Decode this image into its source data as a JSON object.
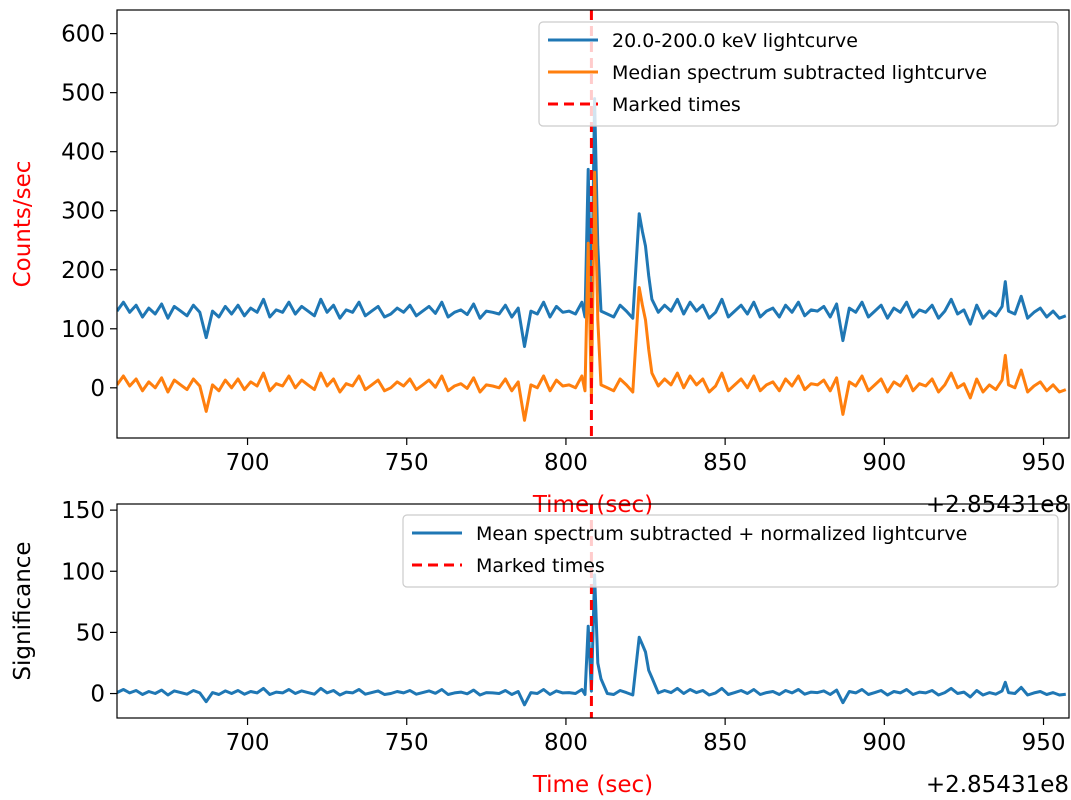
{
  "chart_data": [
    {
      "type": "line",
      "ylabel": "Counts/sec",
      "xlabel": "Time (sec)",
      "x_offset_label": "+2.85431e8",
      "x_ticks": [
        700,
        750,
        800,
        850,
        900,
        950
      ],
      "y_ticks": [
        0,
        100,
        200,
        300,
        400,
        500,
        600
      ],
      "xlim": [
        659,
        958
      ],
      "ylim": [
        -85,
        640
      ],
      "legend_position": "top-right",
      "marked_time": 808,
      "legend": [
        "20.0-200.0 keV lightcurve",
        "Median spectrum subtracted lightcurve",
        "Marked times"
      ],
      "series": [
        {
          "name": "20.0-200.0 keV lightcurve",
          "color": "#1f77b4",
          "x": [
            659,
            661,
            663,
            665,
            667,
            669,
            671,
            673,
            675,
            677,
            679,
            681,
            683,
            685,
            687,
            689,
            691,
            693,
            695,
            697,
            699,
            701,
            703,
            705,
            707,
            709,
            711,
            713,
            715,
            717,
            719,
            721,
            723,
            725,
            727,
            729,
            731,
            733,
            735,
            737,
            739,
            741,
            743,
            745,
            747,
            749,
            751,
            753,
            755,
            757,
            759,
            761,
            763,
            765,
            767,
            769,
            771,
            773,
            775,
            777,
            779,
            781,
            783,
            785,
            787,
            789,
            791,
            793,
            795,
            797,
            799,
            801,
            803,
            805,
            806,
            807,
            808,
            809,
            810,
            811,
            813,
            815,
            817,
            819,
            821,
            823,
            824,
            825,
            826,
            827,
            829,
            831,
            833,
            835,
            837,
            839,
            841,
            843,
            845,
            847,
            849,
            851,
            853,
            855,
            857,
            859,
            861,
            863,
            865,
            867,
            869,
            871,
            873,
            875,
            877,
            879,
            881,
            883,
            885,
            887,
            889,
            891,
            893,
            895,
            897,
            899,
            901,
            903,
            905,
            907,
            909,
            911,
            913,
            915,
            917,
            919,
            921,
            923,
            925,
            927,
            929,
            931,
            933,
            935,
            937,
            938,
            939,
            941,
            943,
            945,
            947,
            949,
            951,
            953,
            955,
            957
          ],
          "values": [
            130,
            145,
            128,
            140,
            120,
            135,
            125,
            142,
            118,
            138,
            130,
            122,
            140,
            128,
            85,
            130,
            120,
            138,
            125,
            140,
            122,
            135,
            128,
            150,
            120,
            132,
            128,
            145,
            125,
            138,
            130,
            122,
            150,
            128,
            140,
            118,
            132,
            128,
            145,
            122,
            130,
            138,
            120,
            125,
            135,
            128,
            140,
            122,
            130,
            138,
            126,
            145,
            120,
            128,
            132,
            124,
            142,
            118,
            130,
            128,
            125,
            140,
            120,
            135,
            70,
            130,
            125,
            145,
            120,
            138,
            128,
            130,
            125,
            145,
            120,
            370,
            110,
            490,
            240,
            130,
            125,
            120,
            140,
            130,
            118,
            295,
            265,
            240,
            190,
            150,
            128,
            140,
            130,
            150,
            125,
            145,
            130,
            140,
            118,
            128,
            150,
            120,
            130,
            140,
            125,
            145,
            120,
            130,
            135,
            120,
            140,
            128,
            145,
            122,
            132,
            130,
            138,
            120,
            142,
            80,
            135,
            128,
            145,
            120,
            130,
            140,
            118,
            135,
            128,
            145,
            120,
            132,
            128,
            140,
            118,
            130,
            150,
            125,
            132,
            108,
            140,
            118,
            130,
            122,
            138,
            180,
            130,
            125,
            155,
            118,
            128,
            135,
            120,
            130,
            118,
            122
          ]
        },
        {
          "name": "Median spectrum subtracted lightcurve",
          "color": "#ff7f0e",
          "x": [
            659,
            661,
            663,
            665,
            667,
            669,
            671,
            673,
            675,
            677,
            679,
            681,
            683,
            685,
            687,
            689,
            691,
            693,
            695,
            697,
            699,
            701,
            703,
            705,
            707,
            709,
            711,
            713,
            715,
            717,
            719,
            721,
            723,
            725,
            727,
            729,
            731,
            733,
            735,
            737,
            739,
            741,
            743,
            745,
            747,
            749,
            751,
            753,
            755,
            757,
            759,
            761,
            763,
            765,
            767,
            769,
            771,
            773,
            775,
            777,
            779,
            781,
            783,
            785,
            787,
            789,
            791,
            793,
            795,
            797,
            799,
            801,
            803,
            805,
            806,
            807,
            808,
            809,
            810,
            811,
            813,
            815,
            817,
            819,
            821,
            823,
            824,
            825,
            826,
            827,
            829,
            831,
            833,
            835,
            837,
            839,
            841,
            843,
            845,
            847,
            849,
            851,
            853,
            855,
            857,
            859,
            861,
            863,
            865,
            867,
            869,
            871,
            873,
            875,
            877,
            879,
            881,
            883,
            885,
            887,
            889,
            891,
            893,
            895,
            897,
            899,
            901,
            903,
            905,
            907,
            909,
            911,
            913,
            915,
            917,
            919,
            921,
            923,
            925,
            927,
            929,
            931,
            933,
            935,
            937,
            938,
            939,
            941,
            943,
            945,
            947,
            949,
            951,
            953,
            955,
            957
          ],
          "values": [
            5,
            20,
            3,
            15,
            -5,
            10,
            0,
            17,
            -7,
            13,
            5,
            -3,
            15,
            3,
            -40,
            5,
            -5,
            13,
            0,
            15,
            -3,
            10,
            3,
            25,
            -5,
            7,
            3,
            20,
            0,
            13,
            5,
            -3,
            25,
            3,
            15,
            -7,
            7,
            3,
            20,
            -3,
            5,
            13,
            -5,
            0,
            10,
            3,
            15,
            -3,
            5,
            13,
            1,
            20,
            -5,
            3,
            7,
            -1,
            17,
            -7,
            5,
            3,
            0,
            15,
            -5,
            10,
            -55,
            5,
            0,
            20,
            -5,
            13,
            3,
            5,
            0,
            20,
            -5,
            245,
            -15,
            365,
            115,
            5,
            0,
            -5,
            15,
            5,
            -7,
            170,
            140,
            115,
            65,
            25,
            3,
            15,
            5,
            25,
            0,
            20,
            5,
            15,
            -7,
            3,
            25,
            -5,
            5,
            15,
            0,
            20,
            -5,
            5,
            10,
            -5,
            15,
            3,
            20,
            -3,
            7,
            5,
            13,
            -5,
            17,
            -45,
            10,
            3,
            20,
            -5,
            5,
            15,
            -7,
            10,
            3,
            20,
            -5,
            7,
            3,
            15,
            -7,
            5,
            25,
            0,
            7,
            -17,
            15,
            -7,
            5,
            -3,
            13,
            55,
            5,
            0,
            30,
            -7,
            3,
            10,
            -5,
            5,
            -7,
            -3
          ]
        }
      ]
    },
    {
      "type": "line",
      "ylabel": "Significance",
      "xlabel": "Time (sec)",
      "x_offset_label": "+2.85431e8",
      "x_ticks": [
        700,
        750,
        800,
        850,
        900,
        950
      ],
      "y_ticks": [
        0,
        50,
        100,
        150
      ],
      "xlim": [
        659,
        958
      ],
      "ylim": [
        -20,
        155
      ],
      "legend_position": "top-right",
      "marked_time": 808,
      "legend": [
        "Mean spectrum subtracted + normalized lightcurve",
        "Marked times"
      ],
      "series": [
        {
          "name": "Mean spectrum subtracted + normalized lightcurve",
          "color": "#1f77b4",
          "x": [
            659,
            661,
            663,
            665,
            667,
            669,
            671,
            673,
            675,
            677,
            679,
            681,
            683,
            685,
            687,
            689,
            691,
            693,
            695,
            697,
            699,
            701,
            703,
            705,
            707,
            709,
            711,
            713,
            715,
            717,
            719,
            721,
            723,
            725,
            727,
            729,
            731,
            733,
            735,
            737,
            739,
            741,
            743,
            745,
            747,
            749,
            751,
            753,
            755,
            757,
            759,
            761,
            763,
            765,
            767,
            769,
            771,
            773,
            775,
            777,
            779,
            781,
            783,
            785,
            787,
            789,
            791,
            793,
            795,
            797,
            799,
            801,
            803,
            805,
            806,
            807,
            808,
            809,
            810,
            811,
            813,
            815,
            817,
            819,
            821,
            823,
            824,
            825,
            826,
            827,
            829,
            831,
            833,
            835,
            837,
            839,
            841,
            843,
            845,
            847,
            849,
            851,
            853,
            855,
            857,
            859,
            861,
            863,
            865,
            867,
            869,
            871,
            873,
            875,
            877,
            879,
            881,
            883,
            885,
            887,
            889,
            891,
            893,
            895,
            897,
            899,
            901,
            903,
            905,
            907,
            909,
            911,
            913,
            915,
            917,
            919,
            921,
            923,
            925,
            927,
            929,
            931,
            933,
            935,
            937,
            938,
            939,
            941,
            943,
            945,
            947,
            949,
            951,
            953,
            955,
            957
          ],
          "values": [
            0.8,
            3.3,
            0.5,
            2.5,
            -0.8,
            1.7,
            0.0,
            2.8,
            -1.2,
            2.2,
            0.8,
            -0.5,
            2.5,
            0.5,
            -6.7,
            0.8,
            -0.8,
            2.2,
            0.0,
            2.5,
            -0.5,
            1.7,
            0.5,
            4.2,
            -0.8,
            1.2,
            0.5,
            3.3,
            0.0,
            2.2,
            0.8,
            -0.5,
            4.2,
            0.5,
            2.5,
            -1.2,
            1.2,
            0.5,
            3.3,
            -0.5,
            0.8,
            2.2,
            -0.8,
            0.0,
            1.7,
            0.5,
            2.5,
            -0.5,
            0.8,
            2.2,
            0.2,
            3.3,
            -0.8,
            0.5,
            1.2,
            -0.2,
            2.8,
            -1.2,
            0.8,
            0.5,
            0.0,
            2.5,
            -0.8,
            1.7,
            -9.2,
            0.8,
            0.0,
            3.3,
            -0.8,
            2.2,
            0.5,
            0.8,
            0.0,
            3.3,
            -0.8,
            55,
            2,
            97,
            25,
            12,
            0.0,
            -0.8,
            2.5,
            0.8,
            -1.2,
            46,
            40,
            34,
            19,
            13,
            0.5,
            2.5,
            0.8,
            4.2,
            0.0,
            3.3,
            0.8,
            2.5,
            -1.2,
            0.5,
            4.2,
            -0.8,
            0.8,
            2.5,
            0.0,
            3.3,
            -0.8,
            0.8,
            1.7,
            -0.8,
            2.5,
            0.5,
            3.3,
            -0.5,
            1.2,
            0.8,
            2.2,
            -0.8,
            2.8,
            -7.5,
            1.7,
            0.5,
            3.3,
            -0.8,
            0.8,
            2.5,
            -1.2,
            1.7,
            0.5,
            3.3,
            -0.8,
            1.2,
            0.5,
            2.5,
            -1.2,
            0.8,
            4.2,
            0.0,
            1.2,
            -2.8,
            2.5,
            -1.2,
            0.8,
            -0.5,
            2.2,
            9.2,
            0.8,
            0.0,
            5.0,
            -1.2,
            0.5,
            1.7,
            -0.8,
            0.8,
            -1.2,
            -0.5
          ]
        }
      ]
    }
  ]
}
